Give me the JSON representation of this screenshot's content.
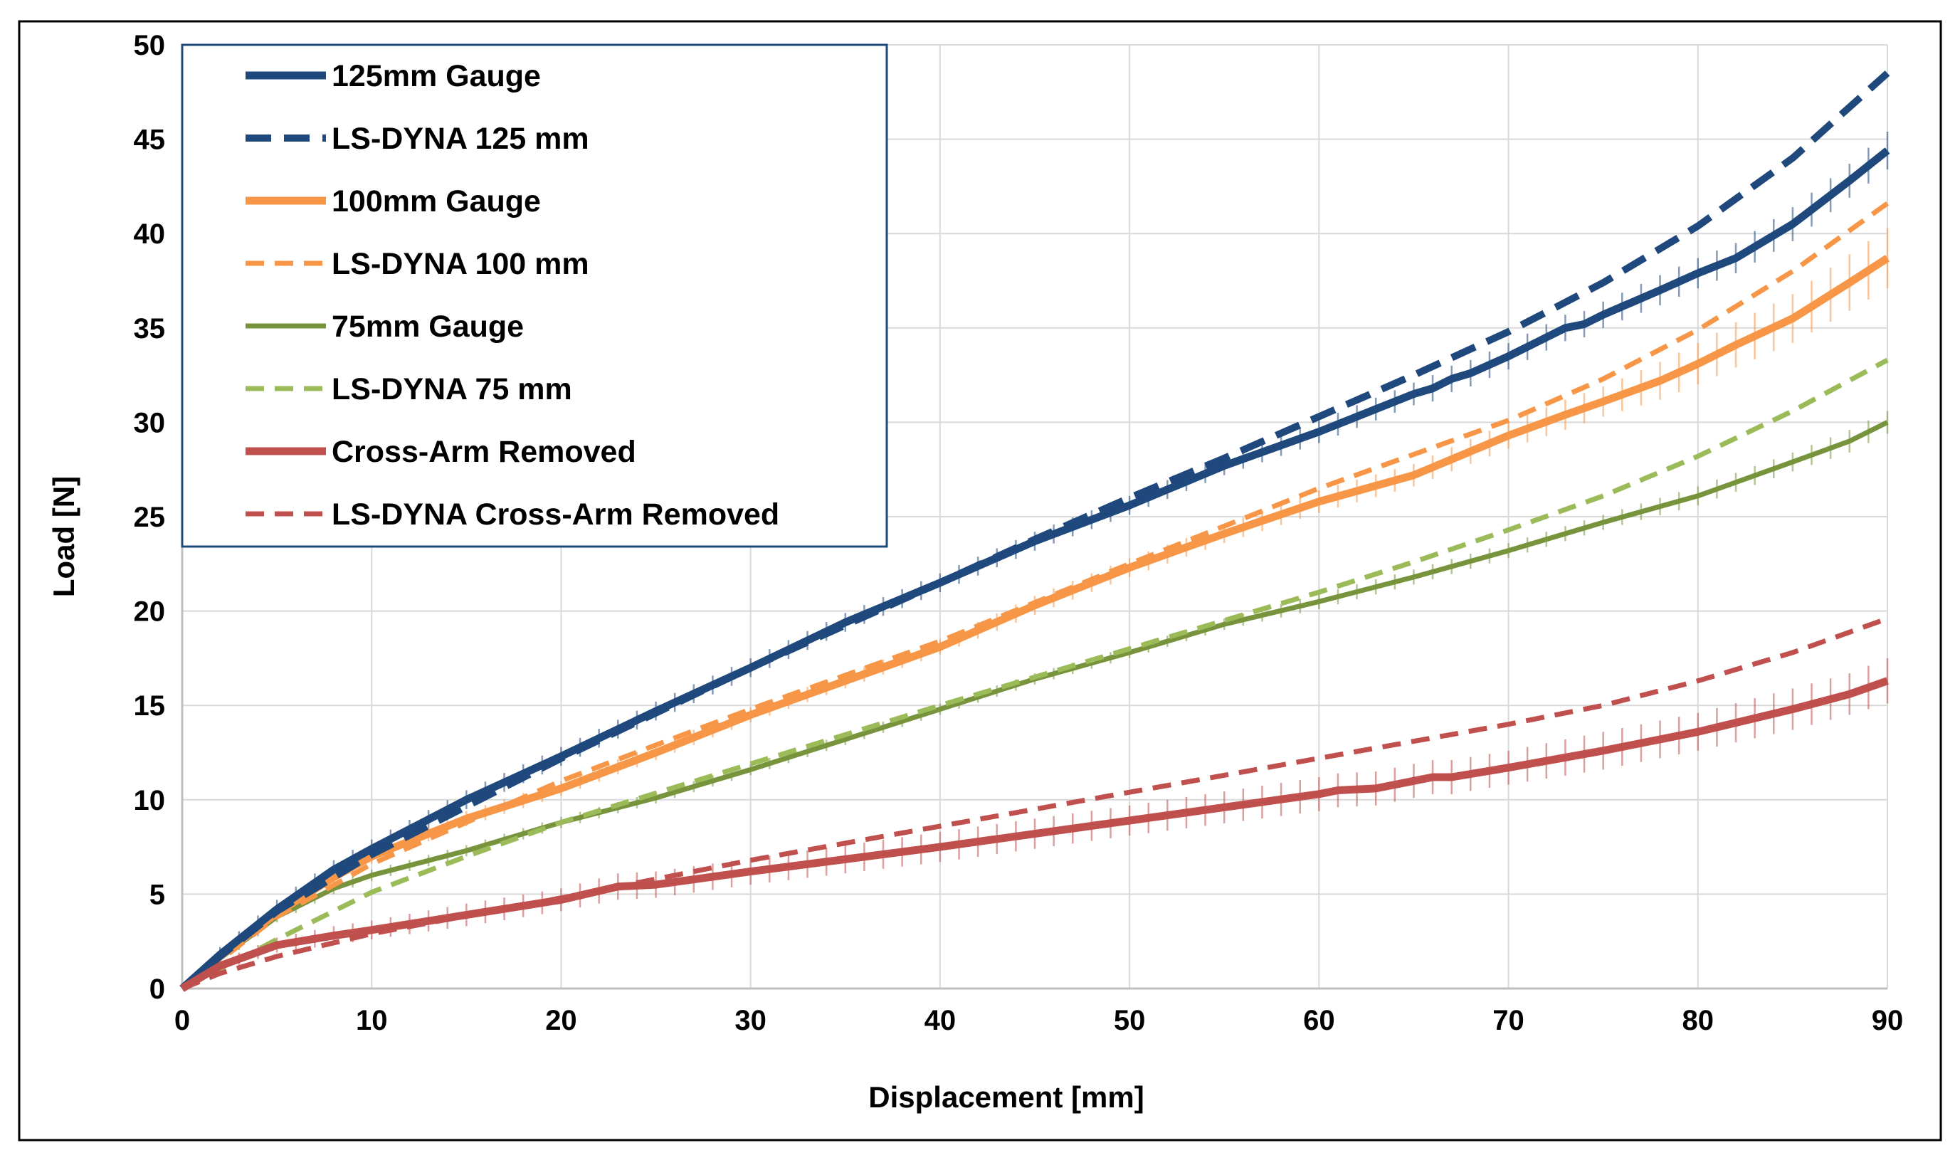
{
  "chart_data": {
    "type": "line",
    "xlabel": "Displacement [mm]",
    "ylabel": "Load [N]",
    "xlim": [
      0,
      90
    ],
    "ylim": [
      0,
      50
    ],
    "xticks": [
      "0",
      "10",
      "20",
      "30",
      "40",
      "50",
      "60",
      "70",
      "80",
      "90"
    ],
    "yticks": [
      "0",
      "5",
      "10",
      "15",
      "20",
      "25",
      "30",
      "35",
      "40",
      "45",
      "50"
    ],
    "grid": true,
    "legend_position": "top-left",
    "series": [
      {
        "name": "125mm Gauge",
        "style": "solid-thick",
        "color": "#1F497D",
        "error_bars": true,
        "x": [
          0,
          2,
          5,
          8,
          10,
          15,
          20,
          25,
          30,
          35,
          40,
          45,
          50,
          55,
          60,
          65,
          66,
          67,
          68,
          70,
          72,
          73,
          74,
          75,
          78,
          80,
          82,
          85,
          88,
          90
        ],
        "y": [
          0,
          1.8,
          4.2,
          6.3,
          7.4,
          10.0,
          12.3,
          14.7,
          17.0,
          19.4,
          21.5,
          23.7,
          25.6,
          27.7,
          29.5,
          31.5,
          31.8,
          32.3,
          32.6,
          33.5,
          34.5,
          35.0,
          35.2,
          35.7,
          37.0,
          37.9,
          38.7,
          40.5,
          42.8,
          44.4
        ],
        "err": [
          0,
          0.4,
          0.5,
          0.5,
          0.5,
          0.5,
          0.5,
          0.5,
          0.5,
          0.5,
          0.5,
          0.5,
          0.5,
          0.5,
          0.6,
          0.6,
          0.7,
          0.7,
          0.7,
          0.7,
          0.7,
          0.7,
          0.7,
          0.7,
          0.8,
          0.8,
          0.8,
          0.9,
          0.9,
          1.0
        ]
      },
      {
        "name": "LS-DYNA 125 mm",
        "style": "dashed-thick",
        "color": "#1F497D",
        "error_bars": false,
        "x": [
          0,
          2,
          5,
          10,
          20,
          30,
          40,
          45,
          50,
          55,
          60,
          65,
          70,
          75,
          80,
          85,
          90
        ],
        "y": [
          0,
          1.7,
          4.1,
          7.1,
          12.2,
          17.0,
          21.5,
          23.8,
          26.0,
          28.1,
          30.3,
          32.5,
          34.8,
          37.4,
          40.4,
          44.0,
          48.5
        ]
      },
      {
        "name": "100mm Gauge",
        "style": "solid-thick",
        "color": "#F79646",
        "error_bars": true,
        "x": [
          0,
          2,
          5,
          8,
          10,
          15,
          20,
          25,
          30,
          35,
          40,
          45,
          50,
          55,
          60,
          65,
          70,
          73,
          75,
          78,
          80,
          82,
          85,
          88,
          90
        ],
        "y": [
          0,
          1.7,
          4.0,
          5.9,
          7.0,
          9.0,
          10.6,
          12.5,
          14.5,
          16.3,
          18.1,
          20.3,
          22.3,
          24.1,
          25.8,
          27.2,
          29.3,
          30.4,
          31.1,
          32.2,
          33.1,
          34.1,
          35.5,
          37.4,
          38.7
        ],
        "err": [
          0,
          0.3,
          0.4,
          0.4,
          0.4,
          0.4,
          0.4,
          0.4,
          0.4,
          0.4,
          0.4,
          0.5,
          0.5,
          0.5,
          0.6,
          0.6,
          0.7,
          0.8,
          0.8,
          1.0,
          1.1,
          1.2,
          1.3,
          1.5,
          1.6
        ]
      },
      {
        "name": "LS-DYNA 100 mm",
        "style": "dashed-thin",
        "color": "#F79646",
        "error_bars": false,
        "x": [
          0,
          2,
          5,
          10,
          20,
          30,
          40,
          50,
          55,
          60,
          65,
          70,
          75,
          80,
          85,
          90
        ],
        "y": [
          0,
          1.5,
          3.8,
          6.6,
          11.0,
          14.8,
          18.4,
          22.5,
          24.5,
          26.5,
          28.3,
          30.1,
          32.3,
          34.9,
          38.0,
          41.6
        ]
      },
      {
        "name": "75mm Gauge",
        "style": "solid",
        "color": "#77933C",
        "error_bars": true,
        "x": [
          0,
          2,
          5,
          8,
          10,
          15,
          20,
          25,
          30,
          35,
          40,
          45,
          50,
          55,
          60,
          65,
          70,
          75,
          80,
          85,
          88,
          90
        ],
        "y": [
          0,
          1.6,
          3.8,
          5.3,
          6.0,
          7.3,
          8.8,
          10.1,
          11.6,
          13.2,
          14.8,
          16.4,
          17.8,
          19.3,
          20.5,
          21.8,
          23.2,
          24.7,
          26.1,
          27.9,
          29.0,
          30.0
        ],
        "err": [
          0,
          0.3,
          0.3,
          0.3,
          0.3,
          0.3,
          0.3,
          0.3,
          0.3,
          0.3,
          0.3,
          0.3,
          0.3,
          0.3,
          0.4,
          0.4,
          0.4,
          0.4,
          0.5,
          0.5,
          0.6,
          0.6
        ]
      },
      {
        "name": "LS-DYNA 75 mm",
        "style": "dashed-thin",
        "color": "#9BBB59",
        "error_bars": false,
        "x": [
          0,
          2,
          5,
          10,
          15,
          20,
          30,
          40,
          50,
          60,
          65,
          70,
          75,
          80,
          85,
          90
        ],
        "y": [
          0,
          1.0,
          2.6,
          5.1,
          7.0,
          8.8,
          11.9,
          15.0,
          18.0,
          21.0,
          22.6,
          24.3,
          26.1,
          28.2,
          30.6,
          33.3
        ]
      },
      {
        "name": "Cross-Arm Removed",
        "style": "solid-thick",
        "color": "#C0504D",
        "error_bars": true,
        "x": [
          0,
          2,
          5,
          8,
          10,
          15,
          20,
          23,
          25,
          30,
          40,
          50,
          60,
          61,
          63,
          65,
          66,
          67,
          70,
          75,
          80,
          85,
          88,
          90
        ],
        "y": [
          0,
          1.2,
          2.3,
          2.8,
          3.1,
          3.9,
          4.7,
          5.4,
          5.5,
          6.2,
          7.5,
          8.9,
          10.3,
          10.5,
          10.6,
          11.0,
          11.2,
          11.2,
          11.7,
          12.6,
          13.6,
          14.8,
          15.6,
          16.3
        ],
        "err": [
          0,
          0.3,
          0.4,
          0.5,
          0.5,
          0.6,
          0.6,
          0.7,
          0.7,
          0.7,
          0.8,
          0.8,
          0.9,
          0.9,
          0.9,
          0.9,
          0.9,
          0.9,
          0.9,
          1.0,
          1.0,
          1.1,
          1.1,
          1.2
        ]
      },
      {
        "name": "LS-DYNA Cross-Arm Removed",
        "style": "dashed-thin",
        "color": "#C0504D",
        "error_bars": false,
        "x": [
          0,
          2,
          5,
          10,
          20,
          25,
          30,
          40,
          50,
          60,
          70,
          75,
          80,
          85,
          90
        ],
        "y": [
          0,
          0.8,
          1.7,
          2.9,
          4.8,
          5.8,
          6.8,
          8.6,
          10.4,
          12.2,
          14.0,
          15.0,
          16.3,
          17.8,
          19.6
        ]
      }
    ]
  }
}
